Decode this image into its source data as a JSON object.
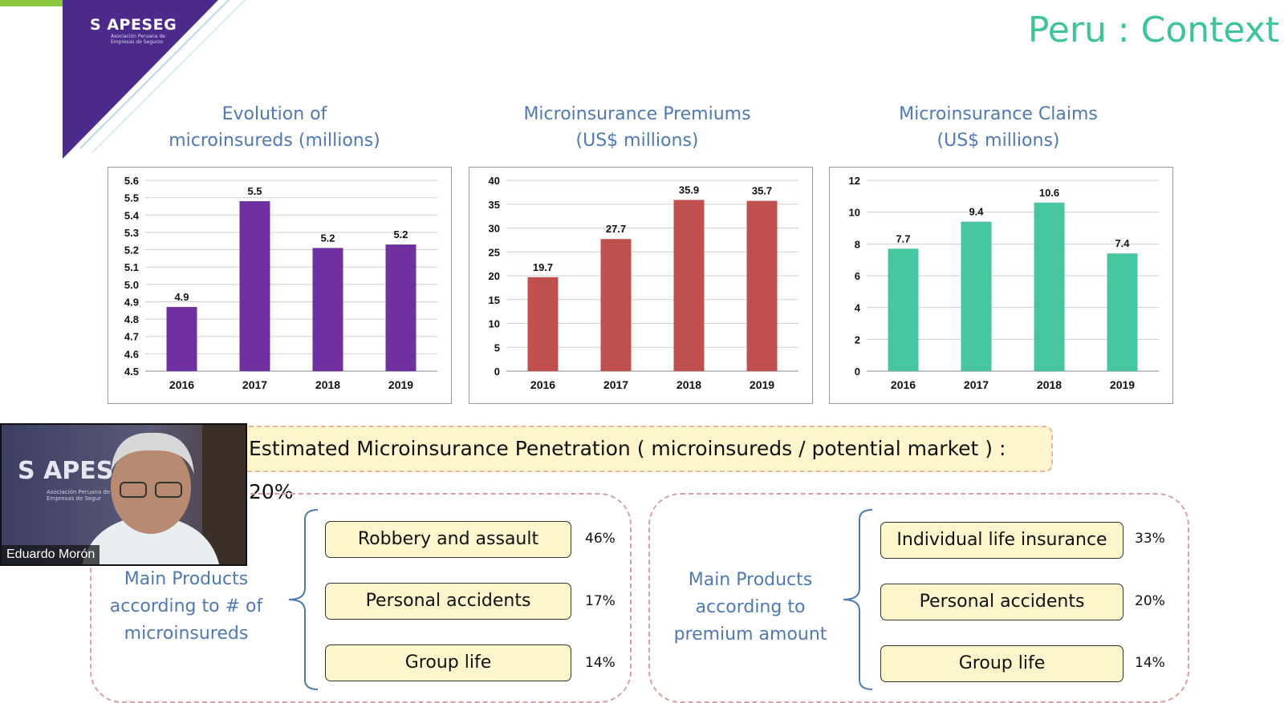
{
  "logo": {
    "name": "APESEG",
    "subtitle": "Asociación Peruana de Empresas de Seguros"
  },
  "slide": {
    "title": "Peru : Context"
  },
  "colors": {
    "purple": "#7030a0",
    "red": "#c0504d",
    "teal": "#47c4a0",
    "title_green": "#3ec49a",
    "label_blue": "#4f79b3"
  },
  "chart_data": [
    {
      "type": "bar",
      "title_line1": "Evolution of",
      "title_line2": "microinsureds (millions)",
      "categories": [
        "2016",
        "2017",
        "2018",
        "2019"
      ],
      "values": [
        4.87,
        5.48,
        5.21,
        5.23
      ],
      "data_labels": [
        "4.9",
        "5.5",
        "5.2",
        "5.2"
      ],
      "ylim": [
        4.5,
        5.6
      ],
      "yticks": [
        "4.5",
        "4.6",
        "4.7",
        "4.8",
        "4.9",
        "5.0",
        "5.1",
        "5.2",
        "5.3",
        "5.4",
        "5.5",
        "5.6"
      ],
      "color": "#7030a0",
      "grid": true
    },
    {
      "type": "bar",
      "title_line1": "Microinsurance Premiums",
      "title_line2": "(US$ millions)",
      "categories": [
        "2016",
        "2017",
        "2018",
        "2019"
      ],
      "values": [
        19.7,
        27.7,
        35.9,
        35.7
      ],
      "data_labels": [
        "19.7",
        "27.7",
        "35.9",
        "35.7"
      ],
      "ylim": [
        0,
        40
      ],
      "yticks": [
        "0",
        "5",
        "10",
        "15",
        "20",
        "25",
        "30",
        "35",
        "40"
      ],
      "color": "#c0504d",
      "grid": true
    },
    {
      "type": "bar",
      "title_line1": "Microinsurance Claims",
      "title_line2": "(US$ millions)",
      "categories": [
        "2016",
        "2017",
        "2018",
        "2019"
      ],
      "values": [
        7.7,
        9.4,
        10.6,
        7.4
      ],
      "data_labels": [
        "7.7",
        "9.4",
        "10.6",
        "7.4"
      ],
      "ylim": [
        0,
        12
      ],
      "yticks": [
        "0",
        "2",
        "4",
        "6",
        "8",
        "10",
        "12"
      ],
      "color": "#47c4a0",
      "grid": true
    }
  ],
  "penetration": {
    "text": "Estimated Microinsurance Penetration ( microinsureds / potential market ) : 20%"
  },
  "groups": [
    {
      "label_line1": "Main Products",
      "label_line2": "according to # of",
      "label_line3": "microinsureds",
      "products": [
        {
          "name": "Robbery and assault",
          "pct": "46%"
        },
        {
          "name": "Personal accidents",
          "pct": "17%"
        },
        {
          "name": "Group life",
          "pct": "14%"
        }
      ]
    },
    {
      "label_line1": "Main Products",
      "label_line2": "according to",
      "label_line3": "premium amount",
      "products": [
        {
          "name": "Individual life insurance",
          "pct": "33%"
        },
        {
          "name": "Personal accidents",
          "pct": "20%"
        },
        {
          "name": "Group life",
          "pct": "14%"
        }
      ]
    }
  ],
  "video": {
    "participant_name": "Eduardo Morón",
    "backdrop_text": "APES",
    "backdrop_sub": "Asociación Peruana de Empresas de Segur"
  }
}
